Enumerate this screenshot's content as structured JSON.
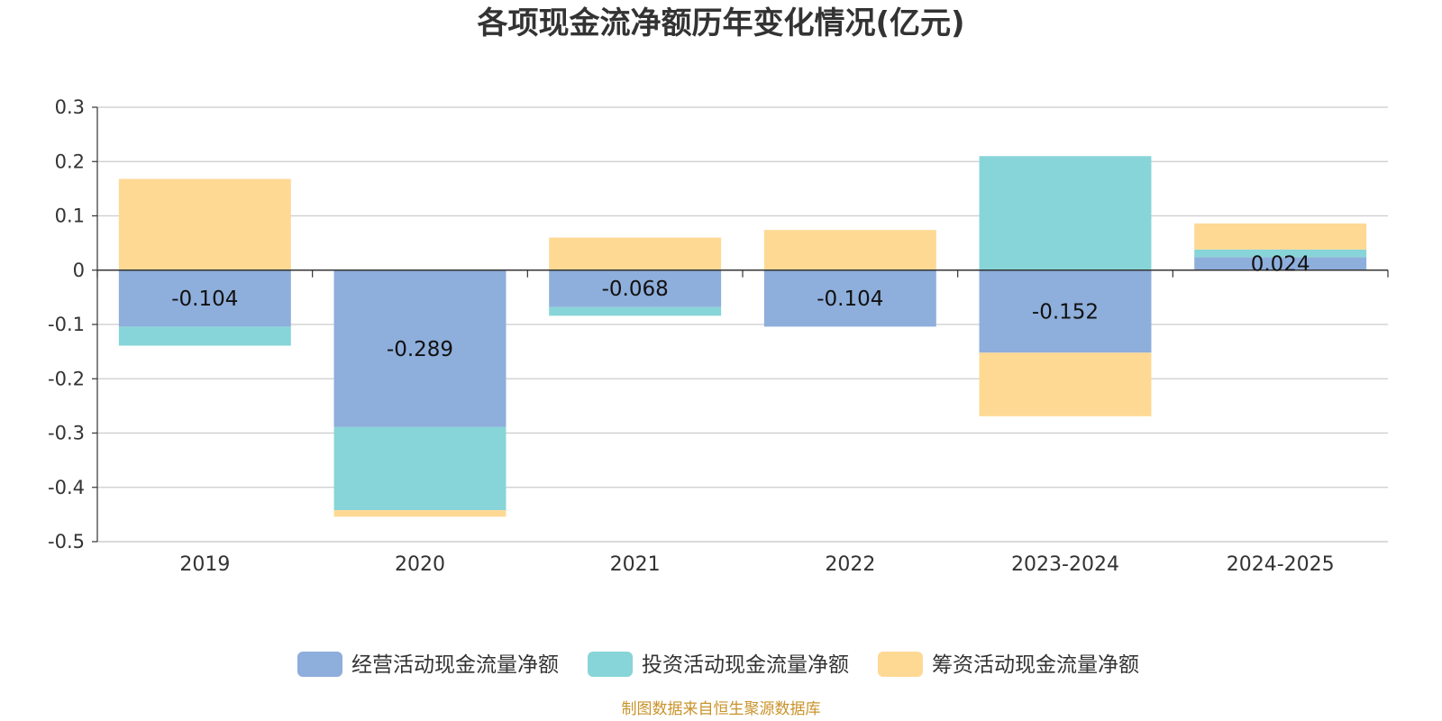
{
  "title": "各项现金流净额历年变化情况(亿元)",
  "source": "制图数据来自恒生聚源数据库",
  "colors": {
    "operating": "#8eaedb",
    "investing": "#87d5d8",
    "financing": "#fed994",
    "grid": "#cccccc",
    "axis": "#333333"
  },
  "chart_data": {
    "type": "bar",
    "stacked": true,
    "categories": [
      "2019",
      "2020",
      "2021",
      "2022",
      "2023-2024",
      "2024-2025"
    ],
    "ylim": [
      -0.5,
      0.3
    ],
    "yticks": [
      0.3,
      0.2,
      0.1,
      0,
      -0.1,
      -0.2,
      -0.3,
      -0.4,
      -0.5
    ],
    "ytick_labels": [
      "0.3",
      "0.2",
      "0.1",
      "0",
      "-0.1",
      "-0.2",
      "-0.3",
      "-0.4",
      "-0.5"
    ],
    "grid": true,
    "legend_position": "bottom",
    "series": [
      {
        "name": "经营活动现金流量净额",
        "color_key": "operating",
        "values": [
          -0.104,
          -0.289,
          -0.068,
          -0.104,
          -0.152,
          0.024
        ],
        "labels": [
          "-0.104",
          "-0.289",
          "-0.068",
          "-0.104",
          "-0.152",
          "0.024"
        ]
      },
      {
        "name": "投资活动现金流量净额",
        "color_key": "investing",
        "values": [
          -0.035,
          -0.153,
          -0.016,
          0,
          0.21,
          0.014
        ]
      },
      {
        "name": "筹资活动现金流量净额",
        "color_key": "financing",
        "values": [
          0.168,
          -0.012,
          0.06,
          0.074,
          -0.117,
          0.048
        ]
      }
    ]
  }
}
